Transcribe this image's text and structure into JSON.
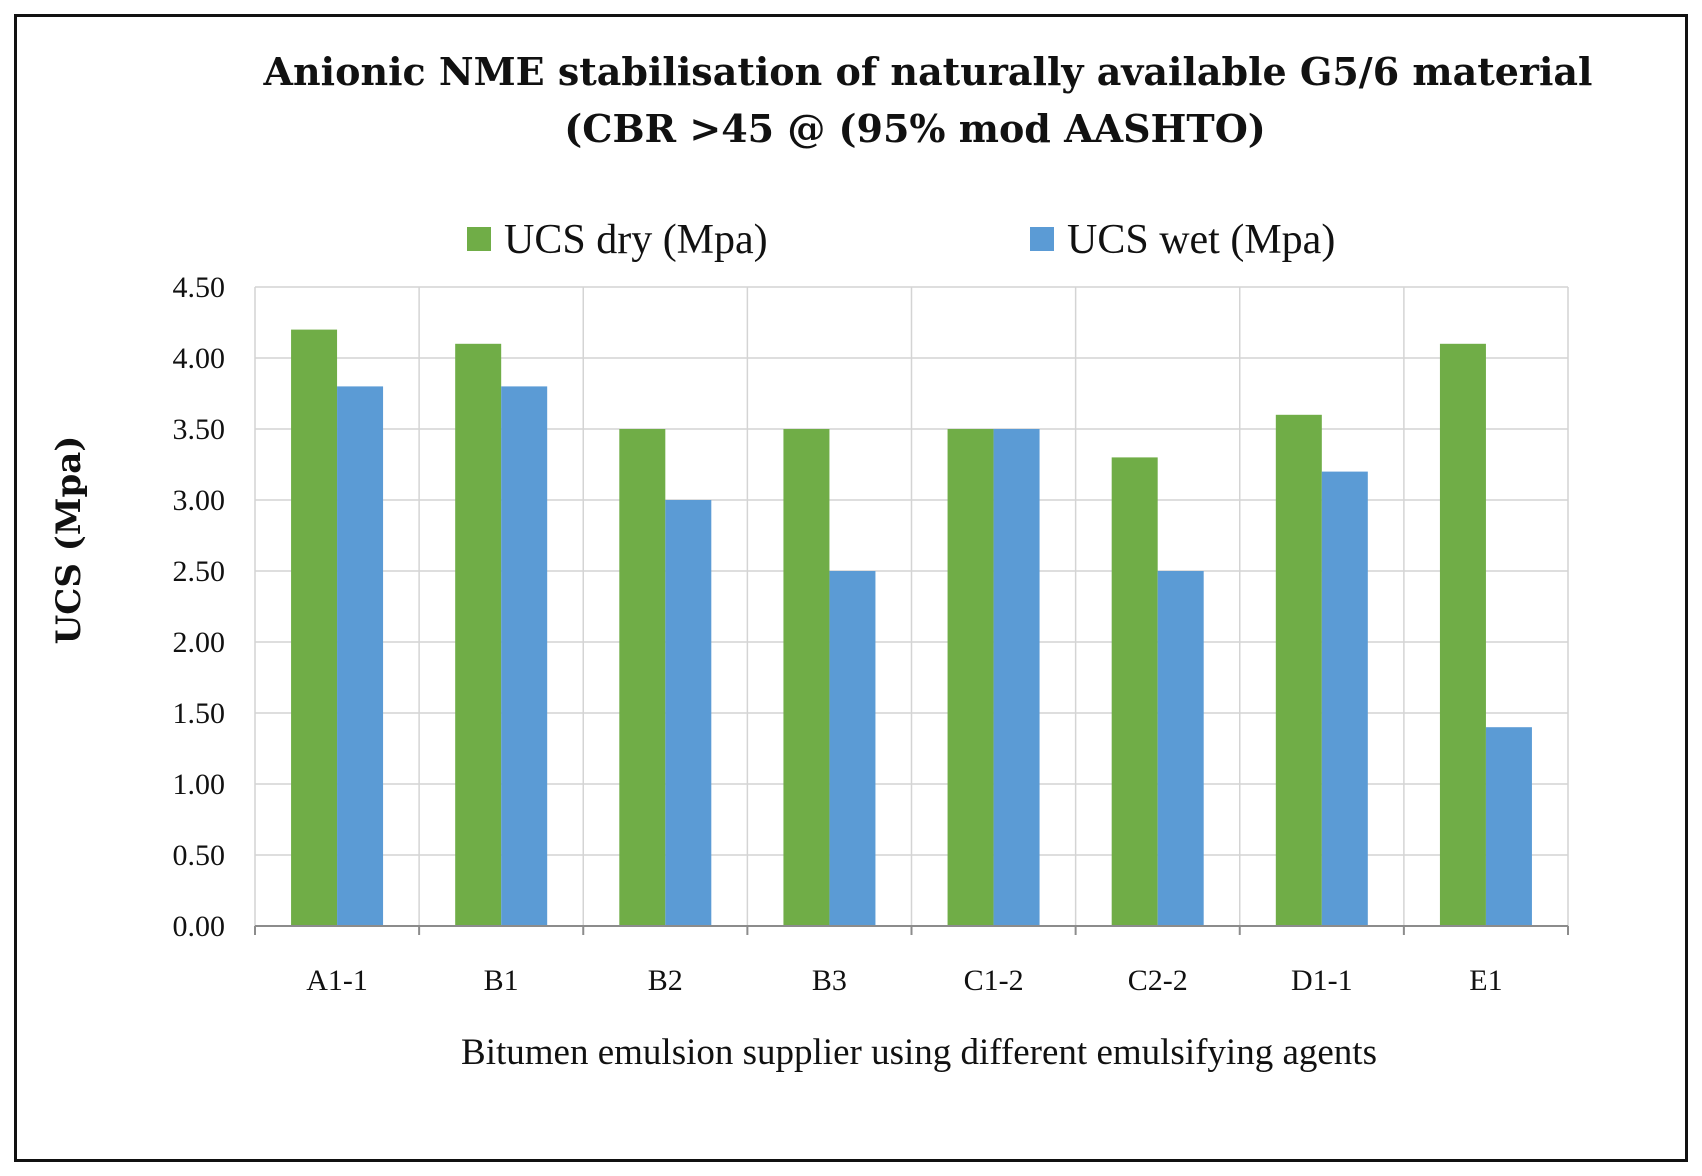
{
  "chart_data": {
    "type": "bar",
    "title_line1": "Anionic NME stabilisation of naturally available G5/6 material",
    "title_line2": "(CBR >45 @ (95% mod AASHTO)",
    "xlabel": "Bitumen emulsion supplier using different emulsifying agents",
    "ylabel": "UCS (Mpa)",
    "categories": [
      "A1-1",
      "B1",
      "B2",
      "B3",
      "C1-2",
      "C2-2",
      "D1-1",
      "E1"
    ],
    "series": [
      {
        "name": "UCS dry (Mpa)",
        "color": "#70AD47",
        "values": [
          4.2,
          4.1,
          3.5,
          3.5,
          3.5,
          3.3,
          3.6,
          4.1
        ]
      },
      {
        "name": "UCS wet (Mpa)",
        "color": "#5B9BD5",
        "values": [
          3.8,
          3.8,
          3.0,
          2.5,
          3.5,
          2.5,
          3.2,
          1.4
        ]
      }
    ],
    "ylim": [
      0,
      4.5
    ],
    "yticks": [
      "0.00",
      "0.50",
      "1.00",
      "1.50",
      "2.00",
      "2.50",
      "3.00",
      "3.50",
      "4.00",
      "4.50"
    ],
    "grid": true,
    "legend_position": "top"
  }
}
